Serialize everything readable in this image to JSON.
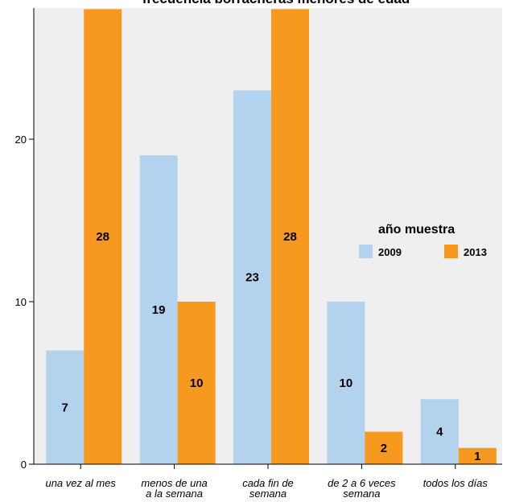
{
  "chart_data": {
    "type": "bar",
    "title": "frecuencia borracheras menores de edad",
    "xlabel": "",
    "ylabel": "",
    "ylim": [
      0,
      28
    ],
    "yticks": [
      0,
      10,
      20
    ],
    "grid": false,
    "categories": [
      [
        "una vez al mes"
      ],
      [
        "menos de una",
        "a la semana"
      ],
      [
        "cada fin de",
        "semana"
      ],
      [
        "de 2 a 6 veces",
        "semana"
      ],
      [
        "todos los días"
      ]
    ],
    "series": [
      {
        "name": "2009",
        "color": "#b2d2ee",
        "values": [
          7,
          19,
          23,
          10,
          4
        ]
      },
      {
        "name": "2013",
        "color": "#f7981f",
        "values": [
          28,
          10,
          28,
          2,
          1
        ]
      }
    ],
    "legend": {
      "title": "año muestra",
      "position": "right"
    },
    "panel_background": "#efefef"
  }
}
